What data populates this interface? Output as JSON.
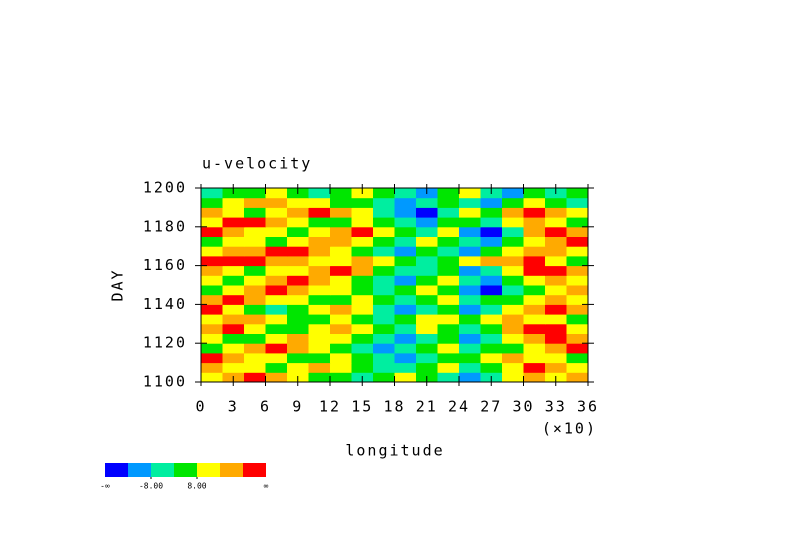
{
  "chart_data": {
    "type": "heatmap",
    "title": "u-velocity",
    "x_label": "longitude",
    "y_label": "DAY",
    "x_multiplier": "(×10)",
    "x": [
      1,
      3,
      5,
      7,
      9,
      11,
      13,
      15,
      17,
      19,
      21,
      23,
      25,
      27,
      29,
      31,
      33,
      35
    ],
    "y": [
      1102.5,
      1107.5,
      1112.5,
      1117.5,
      1122.5,
      1127.5,
      1132.5,
      1137.5,
      1142.5,
      1147.5,
      1152.5,
      1157.5,
      1162.5,
      1167.5,
      1172.5,
      1177.5,
      1182.5,
      1187.5,
      1192.5,
      1197.5
    ],
    "xlim": [
      0,
      36
    ],
    "xticks": [
      0,
      3,
      6,
      9,
      12,
      15,
      18,
      21,
      24,
      27,
      30,
      33,
      36
    ],
    "ylim": [
      1100,
      1200
    ],
    "yticks": [
      1100,
      1120,
      1140,
      1160,
      1180,
      1200
    ],
    "z": [
      [
        12,
        20,
        28,
        20,
        12,
        4,
        4,
        -4,
        4,
        12,
        4,
        -4,
        -12,
        -4,
        12,
        20,
        12,
        20
      ],
      [
        20,
        12,
        12,
        4,
        12,
        20,
        12,
        4,
        -4,
        -4,
        4,
        12,
        -4,
        4,
        12,
        28,
        20,
        12
      ],
      [
        28,
        20,
        12,
        12,
        4,
        4,
        12,
        4,
        -4,
        -12,
        -4,
        4,
        4,
        12,
        20,
        12,
        12,
        4
      ],
      [
        4,
        12,
        20,
        28,
        20,
        12,
        4,
        -4,
        -12,
        -4,
        4,
        12,
        -4,
        4,
        4,
        12,
        20,
        28
      ],
      [
        12,
        4,
        4,
        12,
        20,
        12,
        12,
        4,
        -4,
        -12,
        -4,
        4,
        -12,
        -4,
        12,
        20,
        28,
        20
      ],
      [
        20,
        28,
        12,
        4,
        4,
        12,
        20,
        12,
        4,
        -4,
        12,
        4,
        -4,
        4,
        20,
        28,
        28,
        12
      ],
      [
        12,
        20,
        20,
        12,
        4,
        4,
        12,
        4,
        -4,
        4,
        12,
        12,
        4,
        12,
        20,
        12,
        12,
        4
      ],
      [
        28,
        12,
        4,
        -4,
        4,
        12,
        20,
        12,
        -4,
        -12,
        -4,
        4,
        -12,
        -4,
        12,
        20,
        28,
        20
      ],
      [
        20,
        28,
        20,
        12,
        12,
        4,
        4,
        12,
        4,
        -4,
        4,
        12,
        -4,
        4,
        4,
        12,
        20,
        12
      ],
      [
        4,
        12,
        20,
        28,
        20,
        12,
        12,
        4,
        -4,
        4,
        12,
        4,
        -12,
        -20,
        -4,
        4,
        12,
        20
      ],
      [
        12,
        4,
        12,
        20,
        28,
        20,
        12,
        4,
        -4,
        -12,
        4,
        12,
        -4,
        -12,
        4,
        12,
        20,
        12
      ],
      [
        20,
        12,
        4,
        12,
        12,
        20,
        28,
        20,
        4,
        -4,
        -4,
        4,
        -12,
        -4,
        12,
        28,
        28,
        20
      ],
      [
        28,
        28,
        28,
        20,
        20,
        12,
        12,
        20,
        12,
        4,
        -4,
        4,
        12,
        20,
        20,
        28,
        12,
        4
      ],
      [
        12,
        20,
        20,
        28,
        28,
        20,
        12,
        4,
        -4,
        -12,
        4,
        -4,
        -12,
        4,
        12,
        20,
        20,
        12
      ],
      [
        4,
        12,
        12,
        4,
        12,
        20,
        20,
        12,
        4,
        -4,
        12,
        4,
        -4,
        -12,
        4,
        12,
        20,
        28
      ],
      [
        28,
        20,
        12,
        12,
        4,
        12,
        20,
        28,
        12,
        4,
        -4,
        12,
        -12,
        -20,
        -4,
        20,
        28,
        20
      ],
      [
        12,
        28,
        28,
        20,
        12,
        4,
        4,
        12,
        4,
        -4,
        -12,
        4,
        4,
        -4,
        12,
        20,
        12,
        4
      ],
      [
        20,
        12,
        4,
        12,
        20,
        28,
        20,
        12,
        -4,
        -12,
        -20,
        -4,
        12,
        4,
        20,
        28,
        20,
        12
      ],
      [
        4,
        12,
        20,
        20,
        12,
        12,
        4,
        4,
        -4,
        -12,
        -4,
        4,
        -4,
        -12,
        4,
        12,
        4,
        -4
      ],
      [
        -4,
        4,
        4,
        12,
        4,
        -4,
        4,
        12,
        4,
        -4,
        -12,
        4,
        12,
        -4,
        -12,
        4,
        -4,
        4
      ]
    ],
    "colorbar": {
      "colors": [
        "#0000ff",
        "#0099ff",
        "#00eea0",
        "#00e600",
        "#ffff00",
        "#ffaa00",
        "#ff0000"
      ],
      "levels": [
        -16,
        -8,
        0,
        8,
        16,
        24
      ],
      "min_label": "-∞",
      "max_label": "∞",
      "ticks": [
        {
          "value": -8,
          "label": "-8.00"
        },
        {
          "value": 8,
          "label": "8.00"
        }
      ]
    }
  }
}
